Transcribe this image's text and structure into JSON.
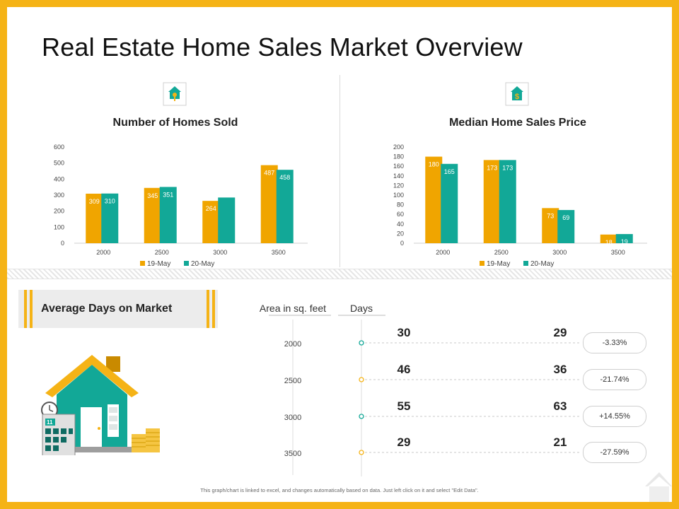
{
  "title": "Real Estate Home Sales Market Overview",
  "colors": {
    "series1": "#f0a500",
    "series2": "#12a897",
    "frame": "#f5b316"
  },
  "icons": [
    "key-house-icon",
    "dollar-house-icon",
    "house-illustration-icon"
  ],
  "chart_data": [
    {
      "type": "bar",
      "title": "Number of Homes Sold",
      "categories": [
        "2000",
        "2500",
        "3000",
        "3500"
      ],
      "series": [
        {
          "name": "19-May",
          "values": [
            309,
            345,
            264,
            487
          ]
        },
        {
          "name": "20-May",
          "values": [
            310,
            351,
            285,
            458
          ]
        }
      ],
      "data_labels": [
        [
          "309",
          "345",
          "264",
          "487"
        ],
        [
          "310",
          "351",
          "",
          "458"
        ]
      ],
      "yticks": [
        "0",
        "100",
        "200",
        "300",
        "400",
        "500",
        "600"
      ],
      "ylim": [
        0,
        600
      ],
      "legend": "bottom"
    },
    {
      "type": "bar",
      "title": "Median Home Sales Price",
      "categories": [
        "2000",
        "2500",
        "3000",
        "3500"
      ],
      "series": [
        {
          "name": "19-May",
          "values": [
            180,
            173,
            73,
            18
          ]
        },
        {
          "name": "20-May",
          "values": [
            165,
            173,
            69,
            19
          ]
        }
      ],
      "data_labels": [
        [
          "180",
          "173",
          "73",
          "18"
        ],
        [
          "165",
          "173",
          "69",
          "19"
        ]
      ],
      "yticks": [
        "0",
        "20",
        "40",
        "60",
        "80",
        "100",
        "120",
        "140",
        "160",
        "180",
        "200"
      ],
      "ylim": [
        0,
        200
      ],
      "legend": "bottom"
    }
  ],
  "days": {
    "banner": "Average Days on Market",
    "header_area": "Area in sq. feet",
    "header_days": "Days",
    "rows": [
      {
        "area": "2000",
        "v1": "30",
        "v2": "29",
        "change": "-3.33%"
      },
      {
        "area": "2500",
        "v1": "46",
        "v2": "36",
        "change": "-21.74%"
      },
      {
        "area": "3000",
        "v1": "55",
        "v2": "63",
        "change": "+14.55%"
      },
      {
        "area": "3500",
        "v1": "29",
        "v2": "21",
        "change": "-27.59%"
      }
    ]
  },
  "footnote": "This graph/chart is linked to excel, and changes automatically based on data. Just left click on it and select \"Edit Data\"."
}
